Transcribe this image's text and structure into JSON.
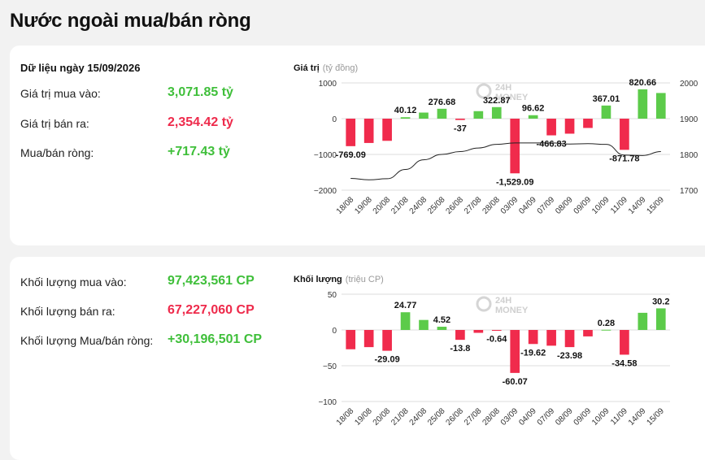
{
  "page_title": "Nước ngoài mua/bán ròng",
  "value_panel": {
    "date_label": "Dữ liệu ngày 15/09/2026",
    "rows": [
      {
        "label": "Giá trị mua vào:",
        "value": "3,071.85 tỷ",
        "tone": "green"
      },
      {
        "label": "Giá trị bán ra:",
        "value": "2,354.42 tỷ",
        "tone": "red"
      },
      {
        "label": "Mua/bán ròng:",
        "value": "+717.43 tỷ",
        "tone": "green"
      }
    ]
  },
  "volume_panel": {
    "rows": [
      {
        "label": "Khối lượng mua vào:",
        "value": "97,423,561 CP",
        "tone": "green"
      },
      {
        "label": "Khối lượng bán ra:",
        "value": "67,227,060 CP",
        "tone": "red"
      },
      {
        "label": "Khối lượng Mua/bán ròng:",
        "value": "+30,196,501 CP",
        "tone": "green"
      }
    ]
  },
  "watermark": {
    "line1": "24H",
    "line2": "MONEY"
  },
  "colors": {
    "positive": "#5ccb4a",
    "negative": "#f02b4c",
    "index_line": "#222222",
    "grid": "#dddddd"
  },
  "chart_data": [
    {
      "type": "bar",
      "title": "Giá trị",
      "unit_label": "(tỷ đồng)",
      "categories": [
        "18/08",
        "19/08",
        "20/08",
        "21/08",
        "24/08",
        "25/08",
        "26/08",
        "27/08",
        "28/08",
        "03/09",
        "04/09",
        "07/09",
        "08/09",
        "09/09",
        "10/09",
        "11/09",
        "14/09",
        "15/09"
      ],
      "values": [
        -769.09,
        -680,
        -620,
        40.12,
        170,
        276.68,
        -37,
        210,
        322.87,
        -1529.09,
        96.62,
        -466.83,
        -420,
        -260,
        367.01,
        -871.78,
        820.66,
        717.43
      ],
      "data_labels": [
        {
          "i": 0,
          "text": "-769.09"
        },
        {
          "i": 3,
          "text": "40.12"
        },
        {
          "i": 5,
          "text": "276.68"
        },
        {
          "i": 6,
          "text": "-37"
        },
        {
          "i": 8,
          "text": "322.87"
        },
        {
          "i": 9,
          "text": "-1,529.09"
        },
        {
          "i": 10,
          "text": "96.62"
        },
        {
          "i": 11,
          "text": "-466.83"
        },
        {
          "i": 14,
          "text": "367.01"
        },
        {
          "i": 15,
          "text": "-871.78"
        },
        {
          "i": 16,
          "text": "820.66"
        }
      ],
      "ylim": [
        -2000,
        1000
      ],
      "yticks": [
        1000,
        0,
        -1000,
        -2000
      ],
      "ytick_labels": [
        "1000",
        "0",
        "−1000",
        "−2000"
      ],
      "secondary_series": {
        "type": "line",
        "values": [
          1733,
          1729,
          1732,
          1758,
          1785,
          1800,
          1808,
          1818,
          1828,
          1832,
          1832,
          1832,
          1829,
          1830,
          1828,
          1798,
          1797,
          1808
        ],
        "ylim": [
          1700,
          2000
        ],
        "yticks": [
          2000,
          1900,
          1800,
          1700
        ],
        "ytick_labels": [
          "2000",
          "1900",
          "1800",
          "1700"
        ]
      }
    },
    {
      "type": "bar",
      "title": "Khối lượng",
      "unit_label": "(triệu CP)",
      "categories": [
        "18/08",
        "19/08",
        "20/08",
        "21/08",
        "24/08",
        "25/08",
        "26/08",
        "27/08",
        "28/08",
        "03/09",
        "04/09",
        "07/09",
        "08/09",
        "09/09",
        "10/09",
        "11/09",
        "14/09",
        "15/09"
      ],
      "values": [
        -27,
        -24,
        -29.09,
        24.77,
        14,
        4.52,
        -13.8,
        -4,
        -0.64,
        -60.07,
        -19.62,
        -22,
        -23.98,
        -9,
        0.28,
        -34.58,
        24,
        30.2
      ],
      "data_labels": [
        {
          "i": 2,
          "text": "-29.09"
        },
        {
          "i": 3,
          "text": "24.77"
        },
        {
          "i": 5,
          "text": "4.52"
        },
        {
          "i": 6,
          "text": "-13.8"
        },
        {
          "i": 8,
          "text": "-0.64"
        },
        {
          "i": 9,
          "text": "-60.07"
        },
        {
          "i": 10,
          "text": "-19.62"
        },
        {
          "i": 12,
          "text": "-23.98"
        },
        {
          "i": 14,
          "text": "0.28"
        },
        {
          "i": 15,
          "text": "-34.58"
        },
        {
          "i": 17,
          "text": "30.2"
        }
      ],
      "ylim": [
        -100,
        50
      ],
      "yticks": [
        50,
        0,
        -50,
        -100
      ],
      "ytick_labels": [
        "50",
        "0",
        "−50",
        "−100"
      ]
    }
  ]
}
